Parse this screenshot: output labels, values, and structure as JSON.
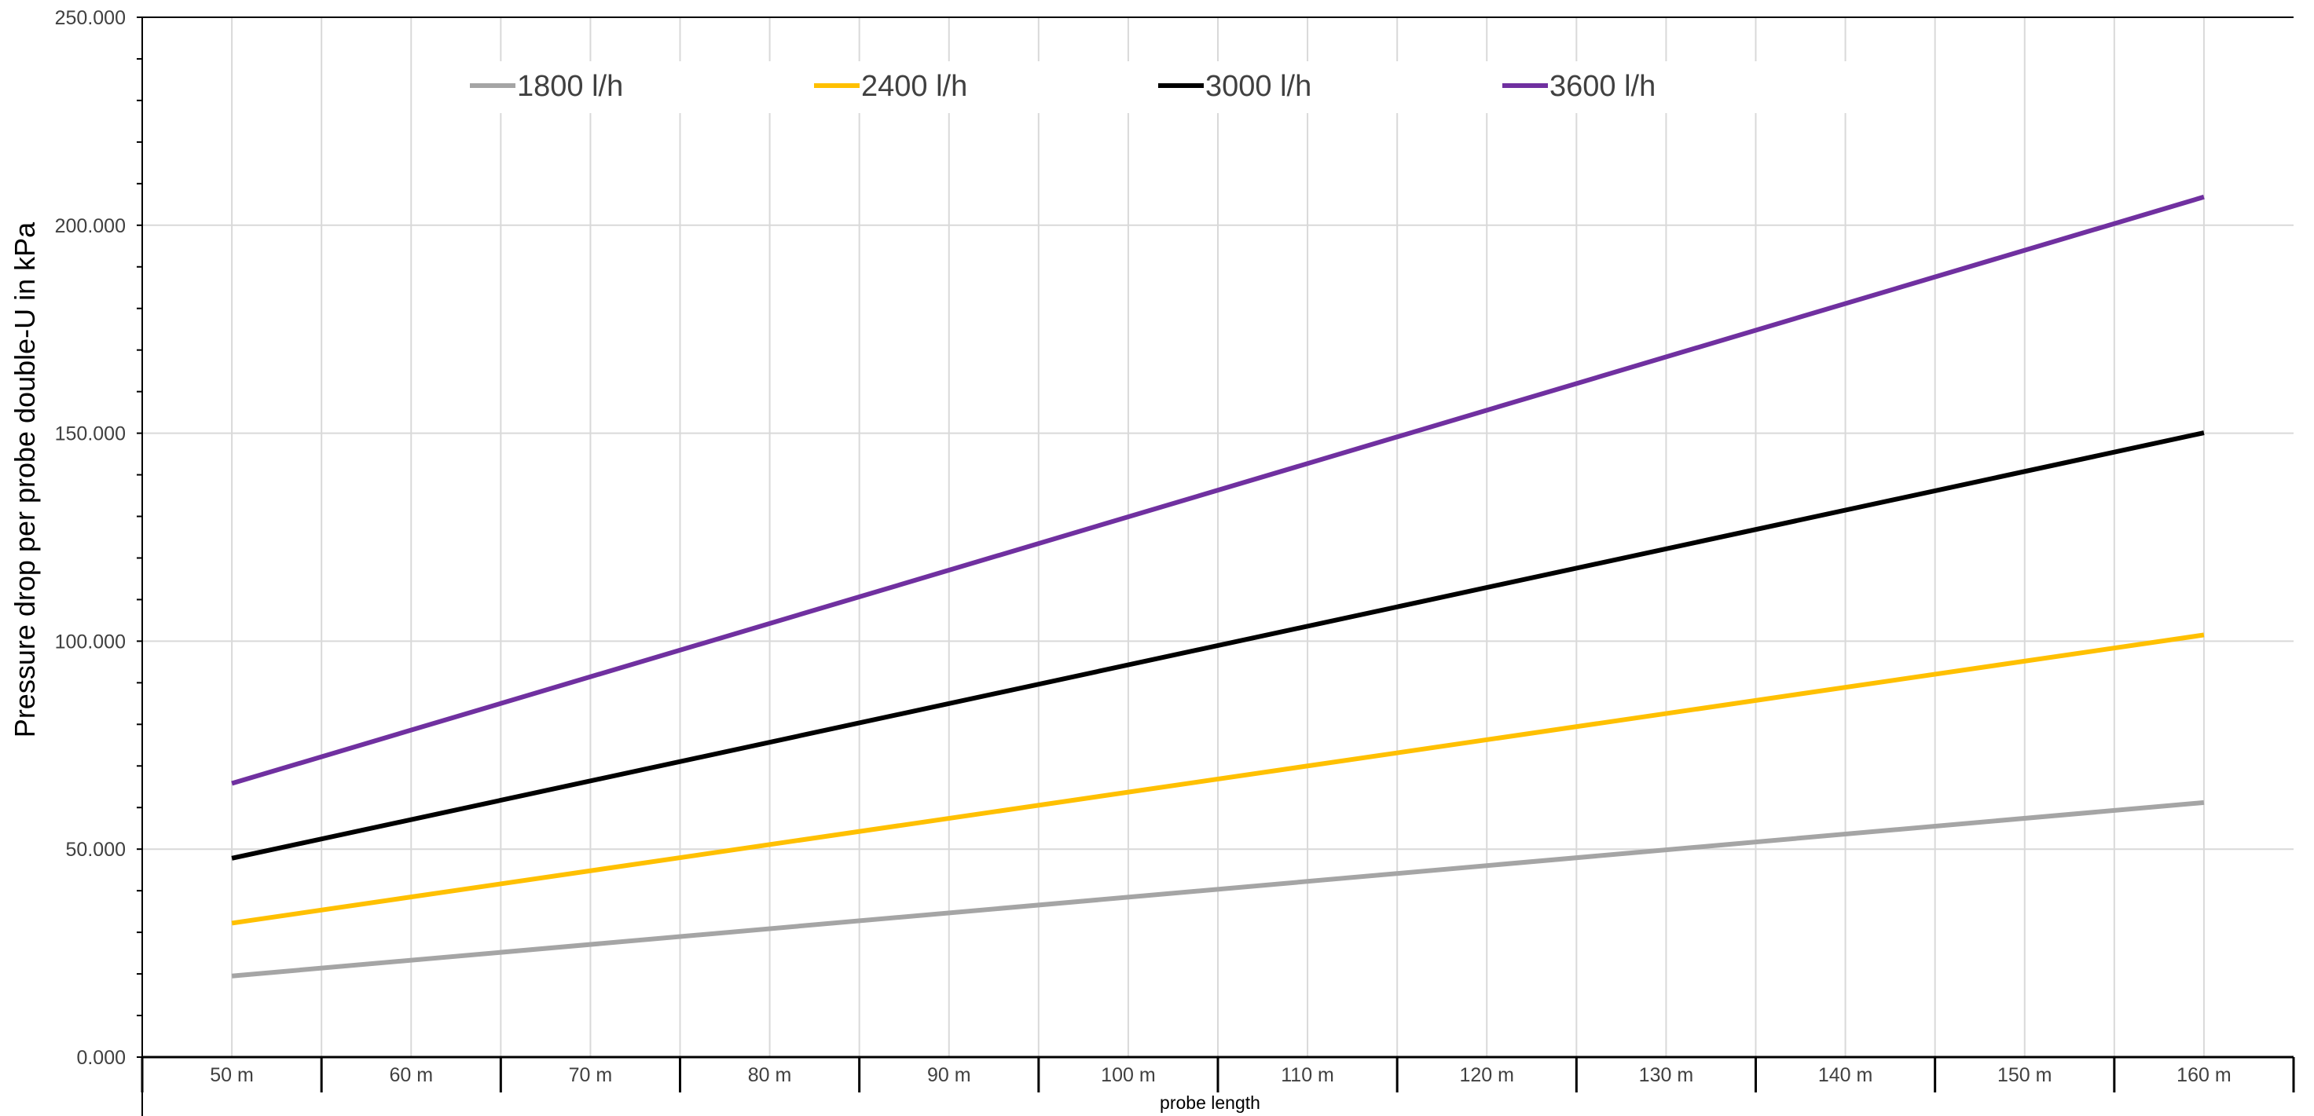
{
  "chart_data": {
    "type": "line",
    "title": "",
    "xlabel": "probe length",
    "ylabel": "Pressure drop per probe double-U in kPa",
    "categories": [
      "50 m",
      "60 m",
      "70 m",
      "80 m",
      "90 m",
      "100 m",
      "110 m",
      "120 m",
      "130 m",
      "140 m",
      "150 m",
      "160 m"
    ],
    "x": [
      50,
      160
    ],
    "ylim": [
      0,
      250000
    ],
    "yticks": [
      {
        "value": 0,
        "label": "0.000"
      },
      {
        "value": 50000,
        "label": "50.000"
      },
      {
        "value": 100000,
        "label": "100.000"
      },
      {
        "value": 150000,
        "label": "150.000"
      },
      {
        "value": 200000,
        "label": "200.000"
      },
      {
        "value": 250000,
        "label": "250.000"
      }
    ],
    "grid": true,
    "legend_position": "top",
    "series": [
      {
        "name": "1800 l/h",
        "color": "#a5a5a5",
        "values": [
          19500,
          61200
        ]
      },
      {
        "name": "2400 l/h",
        "color": "#ffc000",
        "values": [
          32200,
          101500
        ]
      },
      {
        "name": "3000 l/h",
        "color": "#000000",
        "values": [
          47800,
          150100
        ]
      },
      {
        "name": "3600 l/h",
        "color": "#7030a0",
        "values": [
          65800,
          206800
        ]
      }
    ]
  }
}
